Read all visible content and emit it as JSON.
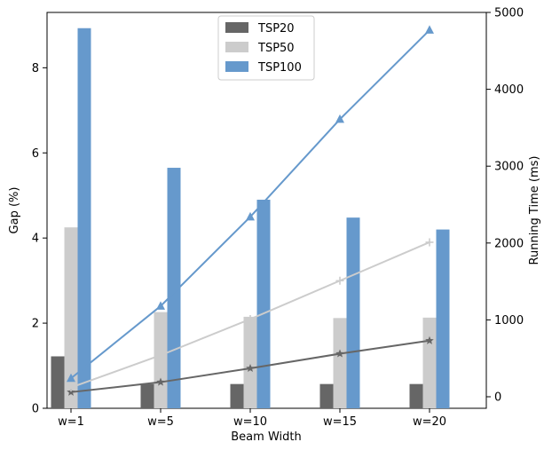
{
  "chart_data": {
    "type": "bar",
    "categories": [
      "w=1",
      "w=5",
      "w=10",
      "w=15",
      "w=20"
    ],
    "xlabel": "Beam Width",
    "ylabel": "Gap (%)",
    "y2label": "Running Time (ms)",
    "ylim": [
      0,
      9.3
    ],
    "y2lim": [
      -150,
      5000
    ],
    "yticks": [
      0,
      2,
      4,
      6,
      8
    ],
    "y2ticks": [
      0,
      1000,
      2000,
      3000,
      4000,
      5000
    ],
    "grid": false,
    "legend_position": "top-center",
    "bar_series": [
      {
        "name": "TSP20",
        "color": "#666666",
        "values": [
          1.22,
          0.57,
          0.57,
          0.57,
          0.57
        ]
      },
      {
        "name": "TSP50",
        "color": "#cccccc",
        "values": [
          4.25,
          2.26,
          2.15,
          2.12,
          2.13
        ]
      },
      {
        "name": "TSP100",
        "color": "#6699cc",
        "values": [
          8.93,
          5.65,
          4.9,
          4.48,
          4.2
        ]
      }
    ],
    "line_series": [
      {
        "name": "TSP20",
        "color": "#666666",
        "marker": "star",
        "values": [
          60,
          190,
          370,
          560,
          730
        ]
      },
      {
        "name": "TSP50",
        "color": "#cccccc",
        "marker": "plus",
        "values": [
          120,
          540,
          1010,
          1510,
          2010
        ]
      },
      {
        "name": "TSP100",
        "color": "#6699cc",
        "marker": "triangle",
        "values": [
          240,
          1180,
          2340,
          3610,
          4770
        ]
      }
    ]
  }
}
